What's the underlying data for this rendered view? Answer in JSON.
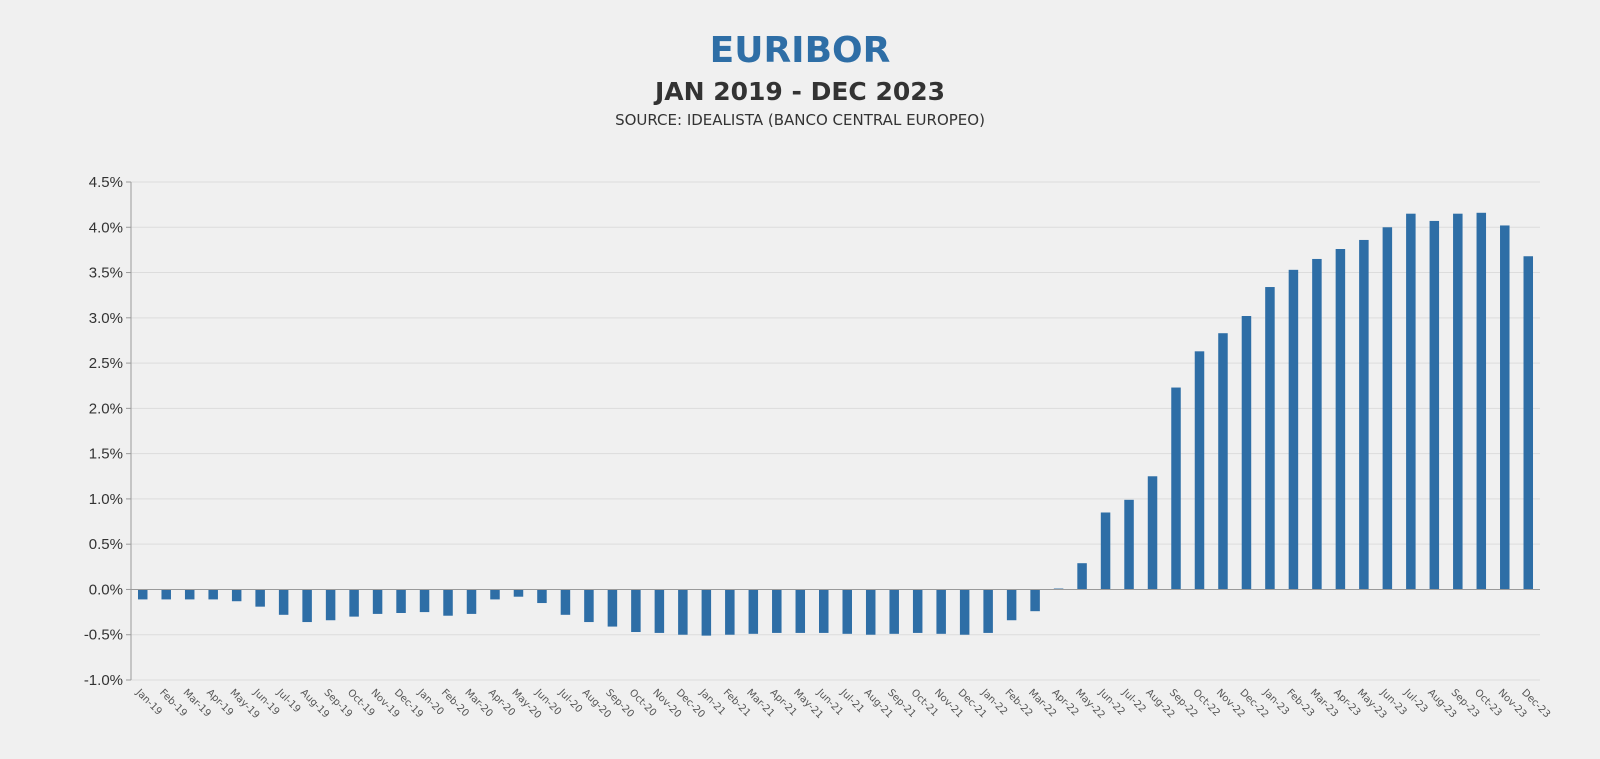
{
  "chart_data": {
    "type": "bar",
    "title": "EURIBOR",
    "subtitle": "JAN 2019 - DEC 2023",
    "source": "SOURCE: IDEALISTA (BANCO CENTRAL EUROPEO)",
    "xlabel": "",
    "ylabel": "",
    "ylim": [
      -1.0,
      4.5
    ],
    "yticks": [
      "-1.0%",
      "-0.5%",
      "0.0%",
      "0.5%",
      "1.0%",
      "1.5%",
      "2.0%",
      "2.5%",
      "3.0%",
      "3.5%",
      "4.0%",
      "4.5%"
    ],
    "grid": true,
    "bar_color": "#2e6ea6",
    "categories": [
      "Jan-19",
      "Feb-19",
      "Mar-19",
      "Apr-19",
      "May-19",
      "Jun-19",
      "Jul-19",
      "Aug-19",
      "Sep-19",
      "Oct-19",
      "Nov-19",
      "Dec-19",
      "Jan-20",
      "Feb-20",
      "Mar-20",
      "Apr-20",
      "May-20",
      "Jun-20",
      "Jul-20",
      "Aug-20",
      "Sep-20",
      "Oct-20",
      "Nov-20",
      "Dec-20",
      "Jan-21",
      "Feb-21",
      "Mar-21",
      "Apr-21",
      "May-21",
      "Jun-21",
      "Jul-21",
      "Aug-21",
      "Sep-21",
      "Oct-21",
      "Nov-21",
      "Dec-21",
      "Jan-22",
      "Feb-22",
      "Mar-22",
      "Apr-22",
      "May-22",
      "Jun-22",
      "Jul-22",
      "Aug-22",
      "Sep-22",
      "Oct-22",
      "Nov-22",
      "Dec-22",
      "Jan-23",
      "Feb-23",
      "Mar-23",
      "Apr-23",
      "May-23",
      "Jun-23",
      "Jul-23",
      "Aug-23",
      "Sep-23",
      "Oct-23",
      "Nov-23",
      "Dec-23"
    ],
    "values": [
      -0.11,
      -0.11,
      -0.11,
      -0.11,
      -0.13,
      -0.19,
      -0.28,
      -0.36,
      -0.34,
      -0.3,
      -0.27,
      -0.26,
      -0.25,
      -0.29,
      -0.27,
      -0.11,
      -0.08,
      -0.15,
      -0.28,
      -0.36,
      -0.41,
      -0.47,
      -0.48,
      -0.5,
      -0.51,
      -0.5,
      -0.49,
      -0.48,
      -0.48,
      -0.48,
      -0.49,
      -0.5,
      -0.49,
      -0.48,
      -0.49,
      -0.5,
      -0.48,
      -0.34,
      -0.24,
      0.01,
      0.29,
      0.85,
      0.99,
      1.25,
      2.23,
      2.63,
      2.83,
      3.02,
      3.34,
      3.53,
      3.65,
      3.76,
      3.86,
      4.0,
      4.15,
      4.07,
      4.15,
      4.16,
      4.02,
      3.68
    ]
  }
}
